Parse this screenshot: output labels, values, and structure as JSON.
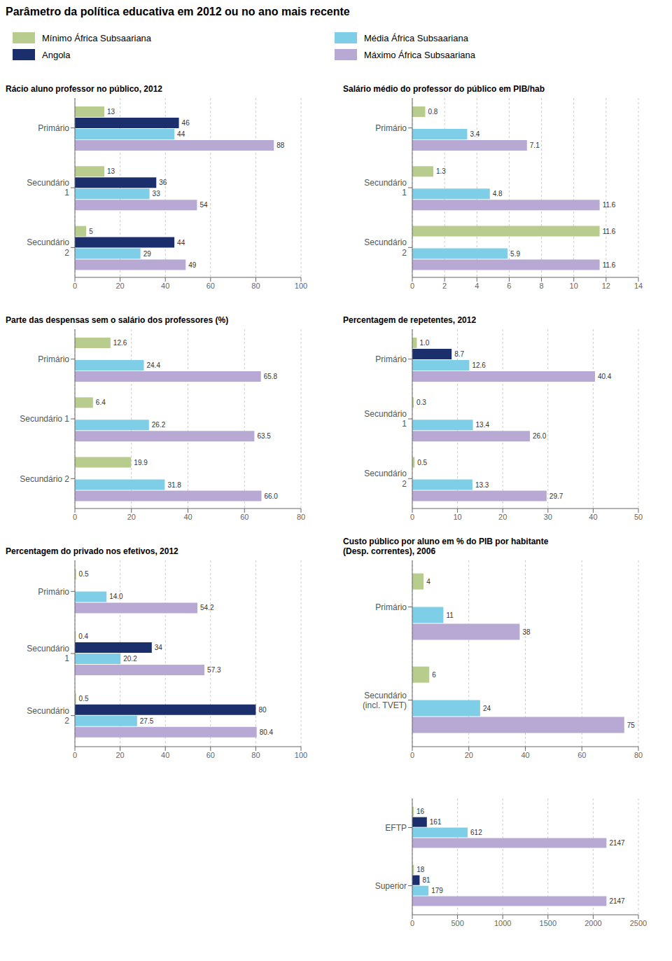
{
  "title": "Parâmetro da política educativa em 2012 ou no ano mais recente",
  "chart_data": [
    {
      "type": "bar",
      "orientation": "horizontal",
      "title": "Rácio aluno professor no público, 2012",
      "categories": [
        "Primário",
        "Secundário\n1",
        "Secundário\n2"
      ],
      "series": [
        {
          "name": "Mínimo África Subsaariana",
          "color": "#b8cc8e",
          "values": [
            13,
            13,
            5
          ]
        },
        {
          "name": "Angola",
          "color": "#1a2f6b",
          "values": [
            46,
            36,
            44
          ]
        },
        {
          "name": "Média África Subsaariana",
          "color": "#7ecee8",
          "values": [
            44,
            33,
            29
          ]
        },
        {
          "name": "Máximo África Subsaariana",
          "color": "#b8a9d4",
          "values": [
            88,
            54,
            49
          ]
        }
      ],
      "xlim": [
        0,
        100
      ],
      "xticks": [
        0,
        20,
        40,
        60,
        80,
        100
      ],
      "grid": true,
      "data_labels": true,
      "legend": "top"
    },
    {
      "type": "bar",
      "orientation": "horizontal",
      "title": "Salário médio do professor do público em PIB/hab",
      "categories": [
        "Primário",
        "Secundário\n1",
        "Secundário\n2"
      ],
      "series": [
        {
          "name": "Mínimo África Subsaariana",
          "color": "#b8cc8e",
          "values": [
            0.8,
            1.3,
            11.6
          ]
        },
        {
          "name": "Angola",
          "color": "#1a2f6b",
          "values": [
            null,
            null,
            null
          ]
        },
        {
          "name": "Média África Subsaariana",
          "color": "#7ecee8",
          "values": [
            3.4,
            4.8,
            5.9
          ]
        },
        {
          "name": "Máximo África Subsaariana",
          "color": "#b8a9d4",
          "values": [
            7.1,
            11.6,
            11.6
          ]
        }
      ],
      "xlim": [
        0,
        14
      ],
      "xticks": [
        0,
        2,
        4,
        6,
        8,
        10,
        12,
        14
      ],
      "grid": true,
      "data_labels": true
    },
    {
      "type": "bar",
      "orientation": "horizontal",
      "title": "Parte das despensas sem o salário dos professores (%)",
      "categories": [
        "Primário",
        "Secundário 1",
        "Secundário 2"
      ],
      "series": [
        {
          "name": "Mínimo África Subsaariana",
          "color": "#b8cc8e",
          "values": [
            12.6,
            6.4,
            19.9
          ]
        },
        {
          "name": "Angola",
          "color": "#1a2f6b",
          "values": [
            null,
            null,
            null
          ]
        },
        {
          "name": "Média África Subsaariana",
          "color": "#7ecee8",
          "values": [
            24.4,
            26.2,
            31.8
          ]
        },
        {
          "name": "Máximo África Subsaariana",
          "color": "#b8a9d4",
          "values": [
            65.8,
            63.5,
            66.0
          ],
          "value_labels": [
            "65.8",
            "63.5",
            "66.0"
          ]
        }
      ],
      "xlim": [
        0,
        80
      ],
      "xticks": [
        0,
        20,
        40,
        60,
        80
      ],
      "grid": true,
      "data_labels": true
    },
    {
      "type": "bar",
      "orientation": "horizontal",
      "title": "Percentagem de repetentes, 2012",
      "categories": [
        "Primário",
        "Secundário\n1",
        "Secundário\n2"
      ],
      "series": [
        {
          "name": "Mínimo África Subsaariana",
          "color": "#b8cc8e",
          "values": [
            1.0,
            0.3,
            0.5
          ],
          "value_labels": [
            "1.0",
            "0.3",
            "0.5"
          ]
        },
        {
          "name": "Angola",
          "color": "#1a2f6b",
          "values": [
            8.7,
            null,
            null
          ]
        },
        {
          "name": "Média África Subsaariana",
          "color": "#7ecee8",
          "values": [
            12.6,
            13.4,
            13.3
          ]
        },
        {
          "name": "Máximo África Subsaariana",
          "color": "#b8a9d4",
          "values": [
            40.4,
            26.0,
            29.7
          ],
          "value_labels": [
            "40.4",
            "26.0",
            "29.7"
          ]
        }
      ],
      "xlim": [
        0,
        50
      ],
      "xticks": [
        0,
        10,
        20,
        30,
        40,
        50
      ],
      "grid": true,
      "data_labels": true
    },
    {
      "type": "bar",
      "orientation": "horizontal",
      "title": "Percentagem do privado nos efetivos, 2012",
      "categories": [
        "Primário",
        "Secundário\n1",
        "Secundário\n2"
      ],
      "series": [
        {
          "name": "Mínimo África Subsaariana",
          "color": "#b8cc8e",
          "values": [
            0.5,
            0.4,
            0.5
          ]
        },
        {
          "name": "Angola",
          "color": "#1a2f6b",
          "values": [
            null,
            34,
            80
          ]
        },
        {
          "name": "Média África Subsaariana",
          "color": "#7ecee8",
          "values": [
            14.0,
            20.2,
            27.5
          ],
          "value_labels": [
            "14.0",
            "20.2",
            "27.5"
          ]
        },
        {
          "name": "Máximo África Subsaariana",
          "color": "#b8a9d4",
          "values": [
            54.2,
            57.3,
            80.4
          ]
        }
      ],
      "xlim": [
        0,
        100
      ],
      "xticks": [
        0,
        20,
        40,
        60,
        80,
        100
      ],
      "grid": true,
      "data_labels": true
    },
    {
      "type": "bar",
      "orientation": "horizontal",
      "title": "Custo público por aluno em % do PIB por habitante\n(Desp. correntes), 2006",
      "categories": [
        "Primário",
        "Secundário\n(incl. TVET)"
      ],
      "series": [
        {
          "name": "Mínimo África Subsaariana",
          "color": "#b8cc8e",
          "values": [
            4,
            6
          ]
        },
        {
          "name": "Angola",
          "color": "#1a2f6b",
          "values": [
            null,
            null
          ]
        },
        {
          "name": "Média África Subsaariana",
          "color": "#7ecee8",
          "values": [
            11,
            24
          ]
        },
        {
          "name": "Máximo África Subsaariana",
          "color": "#b8a9d4",
          "values": [
            38,
            75
          ]
        }
      ],
      "xlim": [
        0,
        80
      ],
      "xticks": [
        0,
        20,
        40,
        60,
        80
      ],
      "grid": true,
      "data_labels": true
    },
    {
      "type": "bar",
      "orientation": "horizontal",
      "categories": [
        "EFTP",
        "Superior"
      ],
      "series": [
        {
          "name": "Mínimo África Subsaariana",
          "color": "#b8cc8e",
          "values": [
            16,
            18
          ]
        },
        {
          "name": "Angola",
          "color": "#1a2f6b",
          "values": [
            161,
            81
          ]
        },
        {
          "name": "Média África Subsaariana",
          "color": "#7ecee8",
          "values": [
            612,
            179
          ]
        },
        {
          "name": "Máximo África Subsaariana",
          "color": "#b8a9d4",
          "values": [
            2147,
            2147
          ]
        }
      ],
      "xlim": [
        0,
        2500
      ],
      "xticks": [
        0,
        500,
        1000,
        1500,
        2000,
        2500
      ],
      "grid": true,
      "data_labels": true
    }
  ]
}
